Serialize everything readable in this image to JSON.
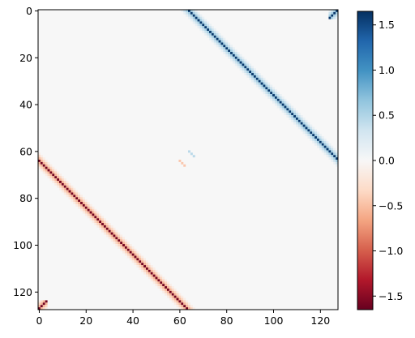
{
  "chart_data": {
    "type": "heatmap",
    "title": "",
    "xlabel": "",
    "ylabel": "",
    "grid": false,
    "x_range": [
      0,
      127
    ],
    "y_range": [
      0,
      127
    ],
    "x_ticks": [
      0,
      20,
      40,
      60,
      80,
      100,
      120
    ],
    "y_ticks": [
      0,
      20,
      40,
      60,
      80,
      100,
      120
    ],
    "x_tick_labels": [
      "0",
      "20",
      "40",
      "60",
      "80",
      "100",
      "120"
    ],
    "y_tick_labels": [
      "0",
      "20",
      "40",
      "60",
      "80",
      "100",
      "120"
    ],
    "colormap": "RdBu",
    "vmin": -1.65,
    "vmax": 1.65,
    "colorbar": {
      "ticks": [
        1.5,
        1.0,
        0.5,
        0.0,
        -0.5,
        -1.0,
        -1.5
      ],
      "tick_labels": [
        "1.5",
        "1.0",
        "0.5",
        "0.0",
        "−0.5",
        "−1.0",
        "−1.5"
      ]
    },
    "bands": [
      {
        "name": "upper",
        "offset": 64,
        "values": {
          "0": 1.6,
          "1": 0.55,
          "2": 0.35,
          "3": 0.12,
          "-1": 0.55,
          "-2": 0.35,
          "-3": 0.12
        }
      },
      {
        "name": "lower",
        "offset": -64,
        "values": {
          "0": -1.6,
          "1": -0.55,
          "2": -0.35,
          "3": -0.12,
          "-1": -0.55,
          "-2": -0.35,
          "-3": -0.12
        }
      }
    ],
    "wrap_corners": [
      {
        "row_range": [
          0,
          3
        ],
        "col_range": [
          124,
          127
        ],
        "sign": 1
      },
      {
        "row_range": [
          124,
          127
        ],
        "col_range": [
          0,
          3
        ],
        "sign": -1
      }
    ],
    "small_segments": [
      {
        "cells": [
          [
            60,
            64
          ],
          [
            61,
            65
          ],
          [
            62,
            66
          ]
        ],
        "value": 0.45
      },
      {
        "cells": [
          [
            64,
            60
          ],
          [
            65,
            61
          ],
          [
            66,
            62
          ]
        ],
        "value": -0.45
      }
    ]
  }
}
